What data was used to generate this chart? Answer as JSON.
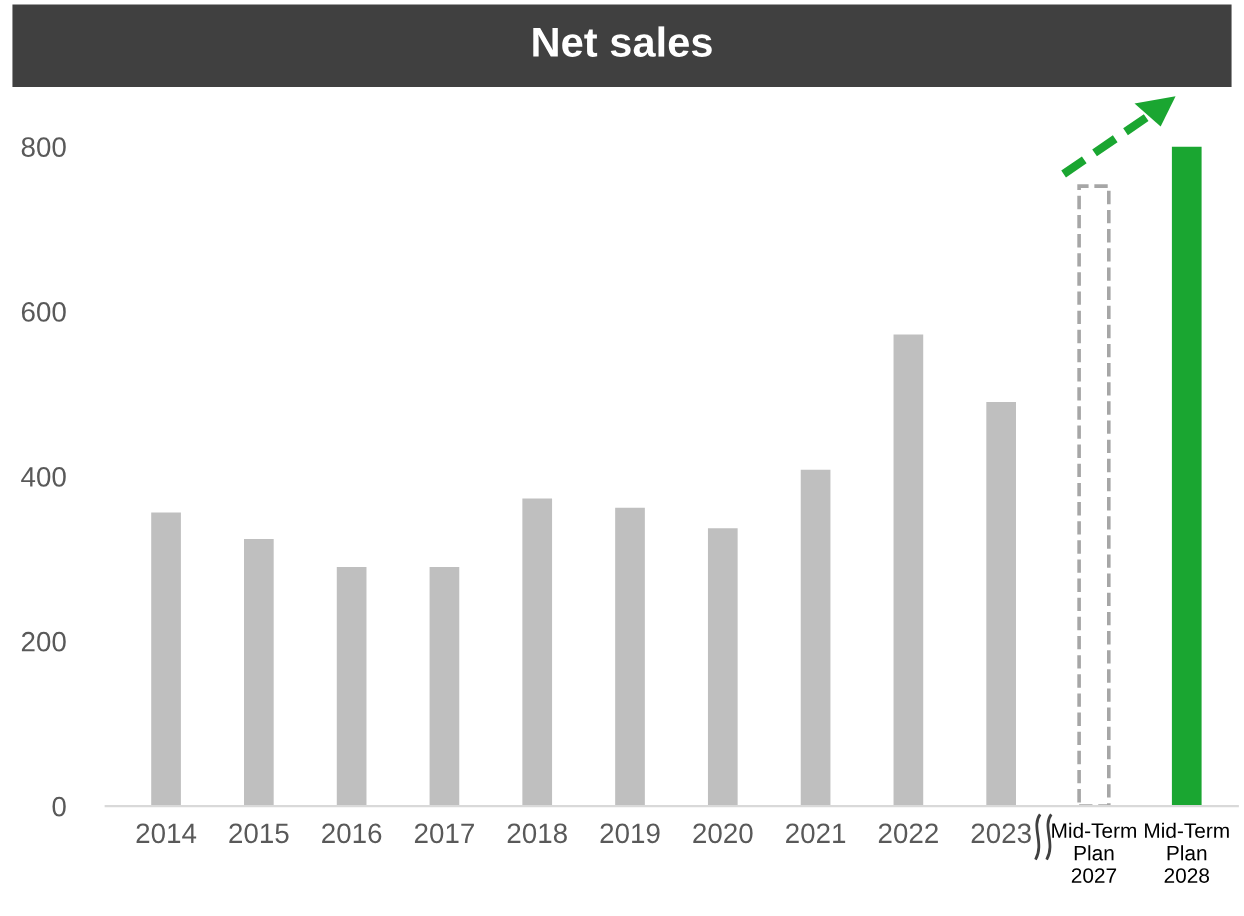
{
  "chart_data": {
    "type": "bar",
    "title": "Net sales",
    "categories": [
      "2014",
      "2015",
      "2016",
      "2017",
      "2018",
      "2019",
      "2020",
      "2021",
      "2022",
      "2023",
      "Mid-Term\nPlan\n2027",
      "Mid-Term\nPlan\n2028"
    ],
    "series": [
      {
        "values": [
          356,
          324,
          290,
          290,
          373,
          362,
          337,
          408,
          572,
          490,
          null,
          800
        ],
        "colors": [
          "#bfbfbf",
          "#bfbfbf",
          "#bfbfbf",
          "#bfbfbf",
          "#bfbfbf",
          "#bfbfbf",
          "#bfbfbf",
          "#bfbfbf",
          "#bfbfbf",
          "#bfbfbf",
          "#bfbfbf",
          "#1aa631"
        ]
      },
      {
        "values": [
          null,
          null,
          null,
          null,
          null,
          null,
          null,
          null,
          null,
          null,
          752,
          null
        ],
        "color": "#a6a6a6",
        "line_style": "dashed"
      }
    ],
    "ylim": [
      0,
      800
    ],
    "yticks": [
      0,
      200,
      400,
      600,
      800
    ],
    "grid": false,
    "legend": false
  }
}
